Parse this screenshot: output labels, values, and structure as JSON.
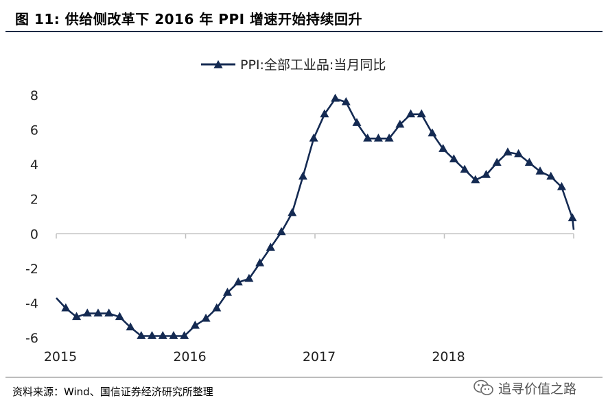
{
  "header": {
    "title": "图  11:  供给侧改革下 2016 年 PPI 增速开始持续回升"
  },
  "footer": {
    "source": "资料来源：Wind、国信证券经济研究所整理",
    "watermark": "追寻价值之路"
  },
  "colors": {
    "series": "#142a52",
    "axis": "#bfbfbf",
    "rule": "#1a2a44"
  },
  "chart_data": {
    "type": "line",
    "legend_position": "top-center",
    "grid": false,
    "xlabel": "",
    "ylabel": "",
    "ylim": [
      -6,
      8
    ],
    "yticks": [
      "8",
      "6",
      "4",
      "2",
      "0",
      "-2",
      "-4",
      "-6"
    ],
    "ytick_values": [
      8,
      6,
      4,
      2,
      0,
      -2,
      -4,
      -6
    ],
    "xticks": [
      "2015",
      "2016",
      "2017",
      "2018"
    ],
    "series": [
      {
        "name": "PPI:全部工业品:当月同比",
        "marker": "triangle",
        "x": [
          "2015-01",
          "2015-02",
          "2015-03",
          "2015-04",
          "2015-05",
          "2015-06",
          "2015-07",
          "2015-08",
          "2015-09",
          "2015-10",
          "2015-11",
          "2015-12",
          "2016-01",
          "2016-02",
          "2016-03",
          "2016-04",
          "2016-05",
          "2016-06",
          "2016-07",
          "2016-08",
          "2016-09",
          "2016-10",
          "2016-11",
          "2016-12",
          "2017-01",
          "2017-02",
          "2017-03",
          "2017-04",
          "2017-05",
          "2017-06",
          "2017-07",
          "2017-08",
          "2017-09",
          "2017-10",
          "2017-11",
          "2017-12",
          "2018-01",
          "2018-02",
          "2018-03",
          "2018-04",
          "2018-05",
          "2018-06",
          "2018-07",
          "2018-08",
          "2018-09",
          "2018-10",
          "2018-11",
          "2018-12"
        ],
        "values": [
          -4.3,
          -4.8,
          -4.6,
          -4.6,
          -4.6,
          -4.8,
          -5.4,
          -5.9,
          -5.9,
          -5.9,
          -5.9,
          -5.9,
          -5.3,
          -4.9,
          -4.3,
          -3.4,
          -2.8,
          -2.6,
          -1.7,
          -0.8,
          0.1,
          1.2,
          3.3,
          5.5,
          6.9,
          7.8,
          7.6,
          6.4,
          5.5,
          5.5,
          5.5,
          6.3,
          6.9,
          6.9,
          5.8,
          4.9,
          4.3,
          3.7,
          3.1,
          3.4,
          4.1,
          4.7,
          4.6,
          4.1,
          3.6,
          3.3,
          2.7,
          0.9
        ]
      }
    ]
  }
}
